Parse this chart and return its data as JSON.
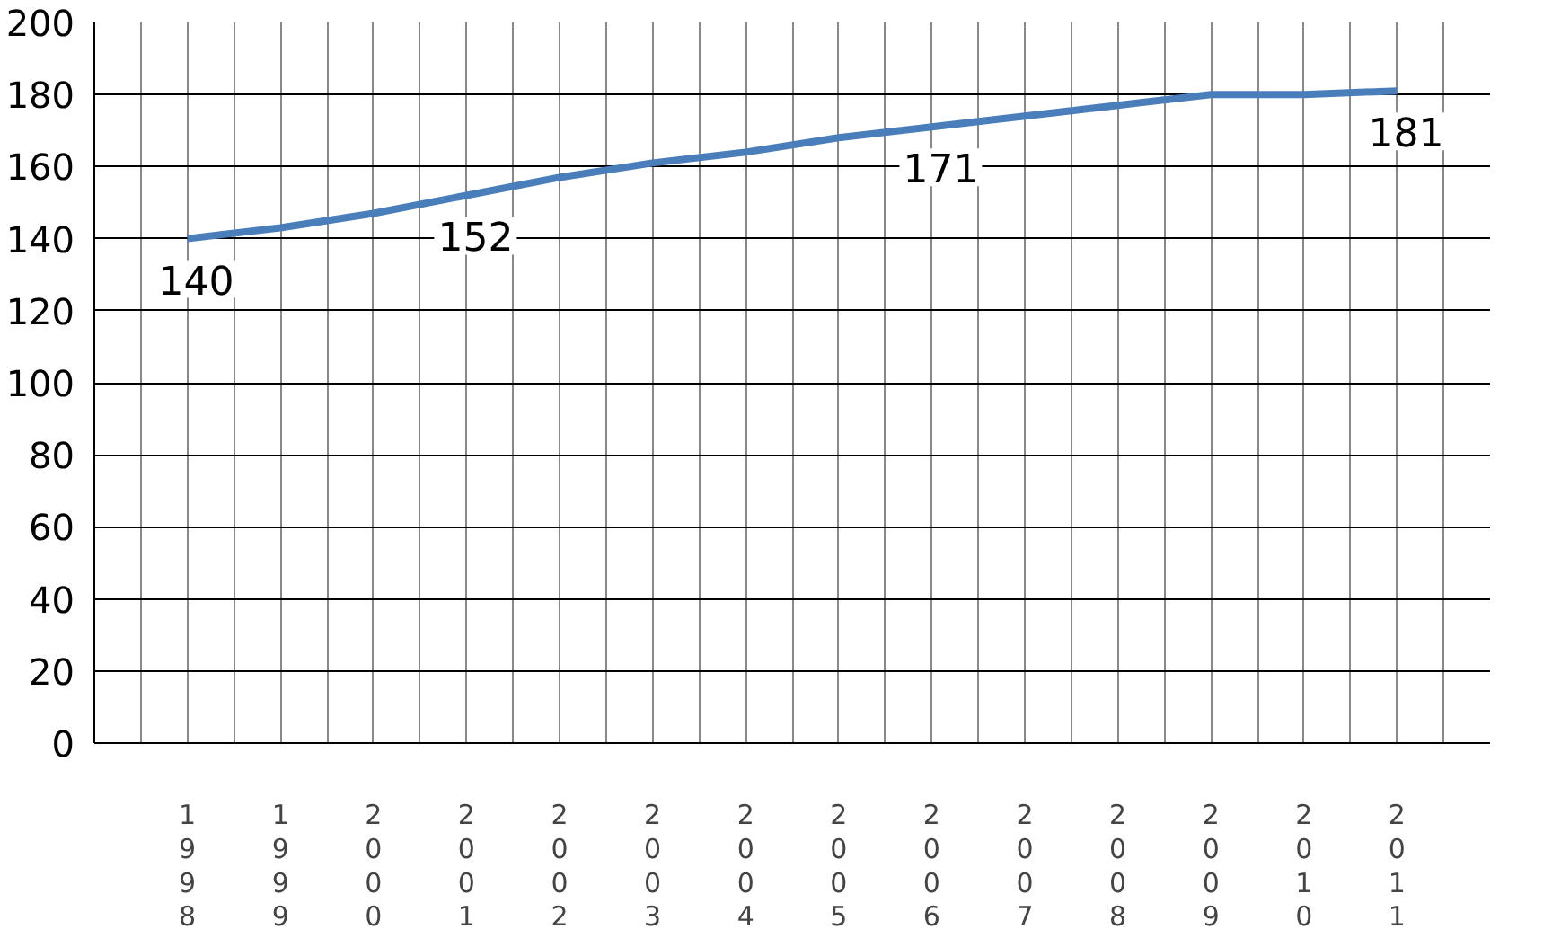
{
  "chart_data": {
    "type": "line",
    "categories": [
      "1998",
      "1999",
      "2000",
      "2001",
      "2002",
      "2003",
      "2004",
      "2005",
      "2006",
      "2007",
      "2008",
      "2009",
      "2010",
      "2011"
    ],
    "series": [
      {
        "color": "#4a7ebb",
        "values": [
          140,
          143,
          147,
          152,
          157,
          161,
          164,
          168,
          171,
          174,
          177,
          180,
          180,
          181
        ],
        "value_labels": [
          "140",
          null,
          null,
          "152",
          null,
          null,
          null,
          null,
          "171",
          null,
          null,
          null,
          null,
          "181"
        ]
      }
    ],
    "ylim": [
      0,
      200
    ],
    "yticks": [
      0,
      20,
      40,
      60,
      80,
      100,
      120,
      140,
      160,
      180,
      200
    ],
    "grid": true,
    "marker": "none",
    "line_style": "solid"
  }
}
